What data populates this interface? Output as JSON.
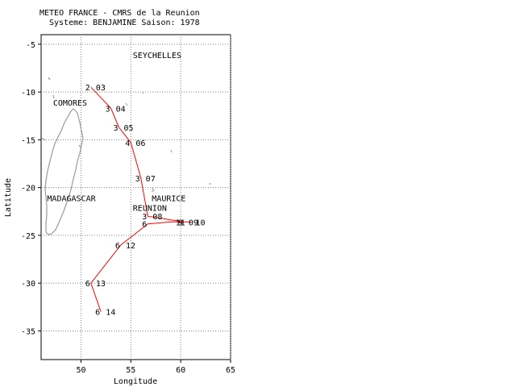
{
  "header": {
    "line1": "METEO FRANCE - CMRS de la Reunion",
    "line2": "Systeme: BENJAMINE  Saison: 1978"
  },
  "axes": {
    "xlabel": "Longitude",
    "ylabel": "Latitude",
    "lon_range": [
      46,
      65
    ],
    "lat_range": [
      -38,
      -4
    ],
    "xticks": [
      {
        "value": 50,
        "label": "50"
      },
      {
        "value": 55,
        "label": "55"
      },
      {
        "value": 60,
        "label": "60"
      },
      {
        "value": 65,
        "label": "65"
      }
    ],
    "yticks": [
      {
        "value": -5,
        "label": "-5"
      },
      {
        "value": -10,
        "label": "-10"
      },
      {
        "value": -15,
        "label": "-15"
      },
      {
        "value": -20,
        "label": "-20"
      },
      {
        "value": -25,
        "label": "-25"
      },
      {
        "value": -30,
        "label": "-30"
      },
      {
        "value": -35,
        "label": "-35"
      }
    ],
    "grid": true
  },
  "places": [
    {
      "name": "SEYCHELLES",
      "lon": 55.2,
      "lat": -6.1
    },
    {
      "name": "COMORES",
      "lon": 47.2,
      "lat": -11.1
    },
    {
      "name": "MADAGASCAR",
      "lon": 46.6,
      "lat": -21.1
    },
    {
      "name": "MAURICE",
      "lon": 57.1,
      "lat": -21.1
    },
    {
      "name": "REUNION",
      "lon": 55.2,
      "lat": -22.1
    }
  ],
  "track": {
    "color": "#ff0000",
    "points": [
      {
        "lon": 51.0,
        "lat": -9.5,
        "intensity": "2",
        "day": "03"
      },
      {
        "lon": 53.0,
        "lat": -11.7,
        "intensity": "3",
        "day": "04"
      },
      {
        "lon": 53.8,
        "lat": -13.7,
        "intensity": "3",
        "day": "05"
      },
      {
        "lon": 55.0,
        "lat": -15.3,
        "intensity": "4",
        "day": "06"
      },
      {
        "lon": 56.0,
        "lat": -19.0,
        "intensity": "3",
        "day": "07"
      },
      {
        "lon": 56.7,
        "lat": -23.0,
        "intensity": "3",
        "day": "08"
      },
      {
        "lon": 60.3,
        "lat": -23.6,
        "intensity": "9",
        "day": "09"
      },
      {
        "lon": 61.0,
        "lat": -23.6,
        "intensity": "",
        "day": "10"
      },
      {
        "lon": 59.0,
        "lat": -23.6,
        "intensity": "",
        "day": "11"
      },
      {
        "lon": 56.7,
        "lat": -23.8,
        "intensity": "6",
        "day": ""
      },
      {
        "lon": 54.0,
        "lat": -26.0,
        "intensity": "6",
        "day": "12"
      },
      {
        "lon": 51.0,
        "lat": -30.0,
        "intensity": "6",
        "day": "13"
      },
      {
        "lon": 52.0,
        "lat": -33.0,
        "intensity": "6",
        "day": "14"
      }
    ]
  },
  "chart_data": {
    "type": "scatter",
    "title": "METEO FRANCE - CMRS de la Reunion",
    "subtitle": "Systeme: BENJAMINE  Saison: 1978",
    "xlabel": "Longitude",
    "ylabel": "Latitude",
    "xlim": [
      46,
      65
    ],
    "ylim": [
      -38,
      -4
    ],
    "grid": true,
    "series": [
      {
        "x": [
          51.0,
          53.0,
          53.8,
          55.0,
          56.0,
          56.7,
          60.3,
          61.0,
          59.0,
          56.7,
          54.0,
          51.0,
          52.0
        ],
        "y": [
          -9.5,
          -11.7,
          -13.7,
          -15.3,
          -19.0,
          -23.0,
          -23.6,
          -23.6,
          -23.6,
          -23.8,
          -26.0,
          -30.0,
          -33.0
        ]
      }
    ]
  }
}
